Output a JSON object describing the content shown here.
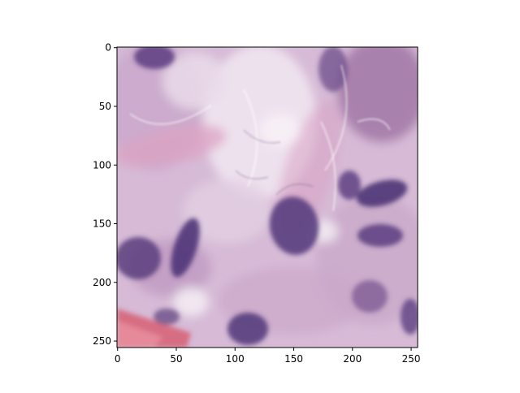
{
  "figure": {
    "image": {
      "subject": "H&E stained histology tissue patch",
      "colors": {
        "background": "#d9c0d8",
        "nucleus": "#5e3f82",
        "stroma_pink": "#dba6c6",
        "pale_area": "#f1e7f0",
        "red_fiber": "#d96a7e"
      }
    },
    "x_axis": {
      "range": [
        0,
        256
      ],
      "ticks": [
        {
          "value": 0,
          "label": "0"
        },
        {
          "value": 50,
          "label": "50"
        },
        {
          "value": 100,
          "label": "100"
        },
        {
          "value": 150,
          "label": "150"
        },
        {
          "value": 200,
          "label": "200"
        },
        {
          "value": 250,
          "label": "250"
        }
      ]
    },
    "y_axis": {
      "range": [
        0,
        256
      ],
      "inverted": true,
      "ticks": [
        {
          "value": 0,
          "label": "0"
        },
        {
          "value": 50,
          "label": "50"
        },
        {
          "value": 100,
          "label": "100"
        },
        {
          "value": 150,
          "label": "150"
        },
        {
          "value": 200,
          "label": "200"
        },
        {
          "value": 250,
          "label": "250"
        }
      ]
    }
  }
}
